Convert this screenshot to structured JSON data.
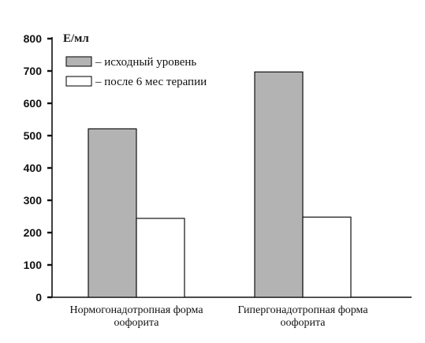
{
  "chart_data": {
    "type": "bar",
    "title": "",
    "xlabel": "",
    "ylabel": "Е/мл",
    "ylim": [
      0,
      800
    ],
    "yticks": [
      0,
      100,
      200,
      300,
      400,
      500,
      600,
      700,
      800
    ],
    "categories": [
      [
        "Нормогонадотропная форма",
        "оофорита"
      ],
      [
        "Гипергонадотропная форма",
        "оофорита"
      ]
    ],
    "series": [
      {
        "name": "– исходный уровень",
        "values": [
          521,
          697
        ],
        "color": "#b3b3b3"
      },
      {
        "name": "– после 6 мес терапии",
        "values": [
          244,
          248
        ],
        "color": "#ffffff"
      }
    ],
    "grid": false,
    "legend_position": "top-left"
  }
}
